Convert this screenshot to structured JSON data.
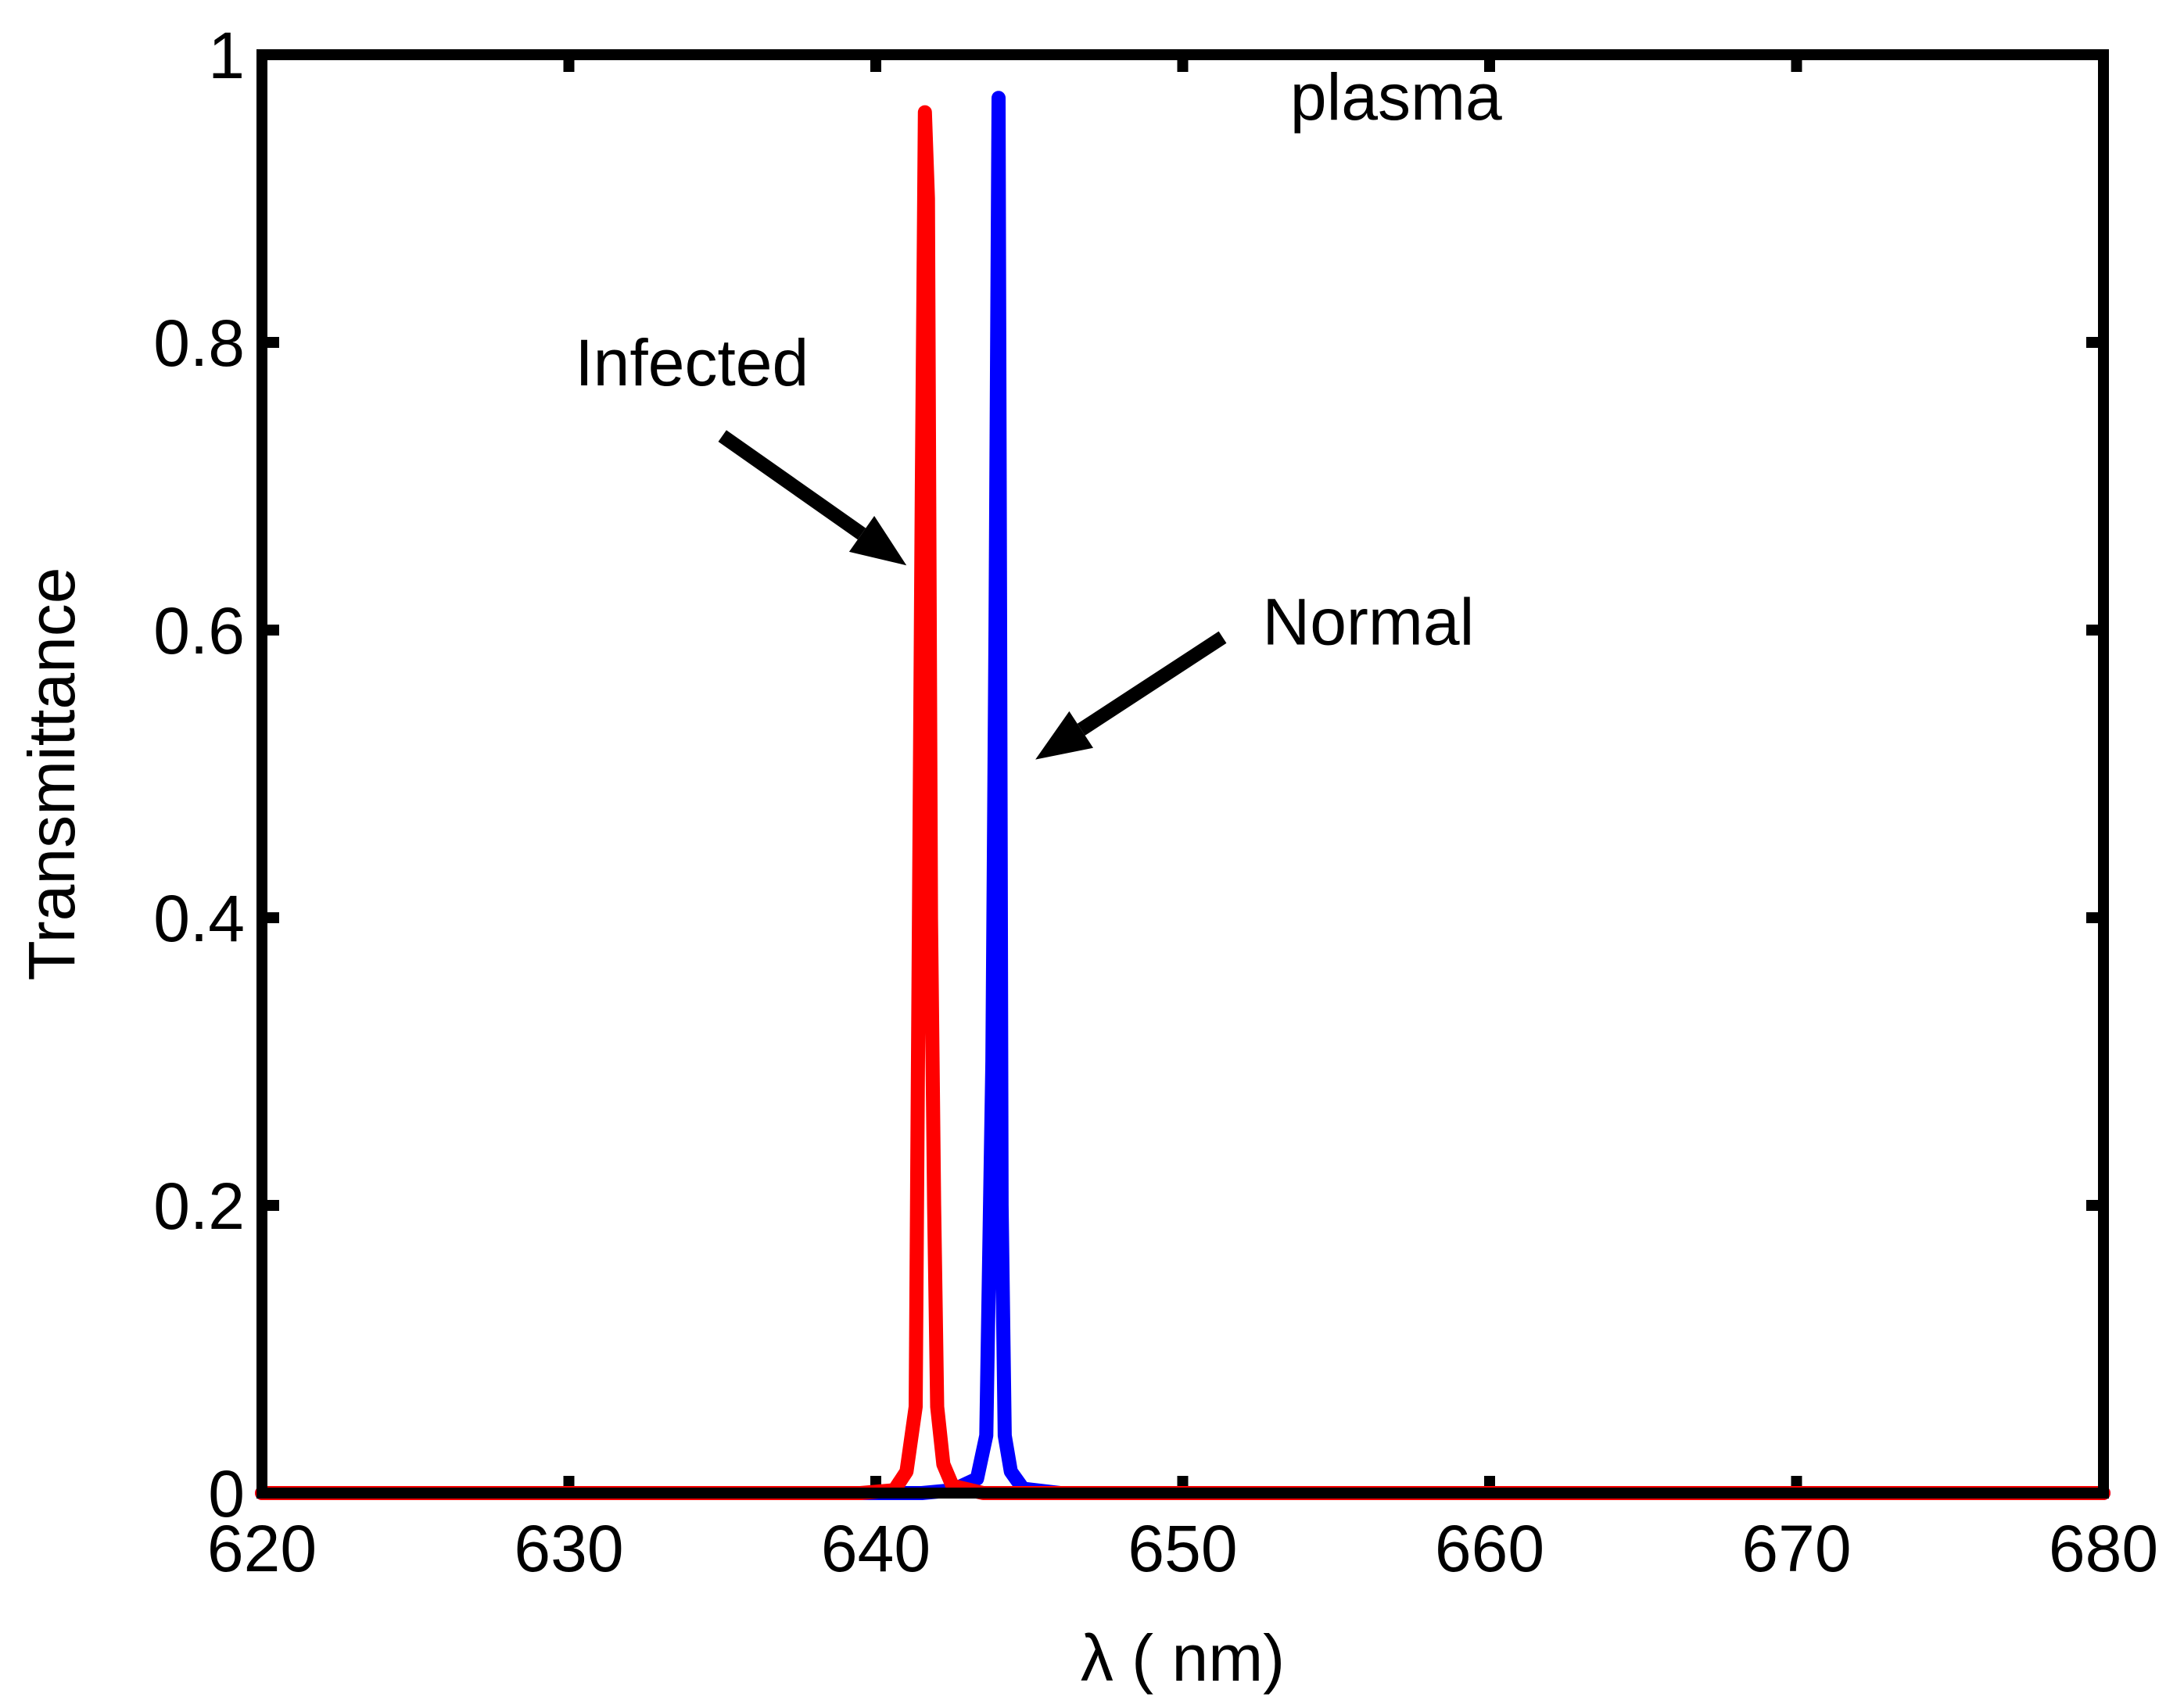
{
  "chart_data": {
    "type": "line",
    "title": "",
    "xlabel": "λ ( nm)",
    "ylabel": "Transmittance",
    "xlim": [
      620,
      680
    ],
    "ylim": [
      0,
      1
    ],
    "xticks": [
      620,
      630,
      640,
      650,
      660,
      670,
      680
    ],
    "yticks": [
      0,
      0.2,
      0.4,
      0.6,
      0.8,
      1
    ],
    "xtick_labels": [
      "620",
      "630",
      "640",
      "650",
      "660",
      "670",
      "680"
    ],
    "ytick_labels": [
      "0",
      "0.2",
      "0.4",
      "0.6",
      "0.8",
      "1"
    ],
    "grid": false,
    "series": [
      {
        "name": "Normal",
        "color": "#0000ff",
        "x": [
          620,
          641.5,
          642.5,
          643.3,
          643.6,
          643.8,
          643.9,
          644.0,
          644.05,
          644.1,
          644.2,
          644.4,
          644.8,
          646,
          680
        ],
        "y": [
          0,
          0,
          0.002,
          0.01,
          0.04,
          0.3,
          0.6,
          0.97,
          0.6,
          0.2,
          0.04,
          0.015,
          0.003,
          0,
          0
        ]
      },
      {
        "name": "Infected",
        "color": "#ff0000",
        "x": [
          620,
          639.5,
          640.6,
          641.0,
          641.3,
          641.5,
          641.6,
          641.7,
          641.8,
          641.9,
          642.0,
          642.2,
          642.5,
          643.5,
          680
        ],
        "y": [
          0,
          0,
          0.002,
          0.015,
          0.06,
          0.7,
          0.96,
          0.9,
          0.4,
          0.2,
          0.06,
          0.02,
          0.005,
          0,
          0
        ]
      }
    ],
    "annotations": [
      {
        "text": "plasma",
        "x": 653.5,
        "y": 0.955
      },
      {
        "text": "Infected",
        "x": 630.2,
        "y": 0.77,
        "arrow_from": [
          635.0,
          0.735
        ],
        "arrow_to": [
          641.0,
          0.645
        ]
      },
      {
        "text": "Normal",
        "x": 652.6,
        "y": 0.59,
        "arrow_from": [
          651.3,
          0.595
        ],
        "arrow_to": [
          645.2,
          0.51
        ]
      }
    ]
  }
}
